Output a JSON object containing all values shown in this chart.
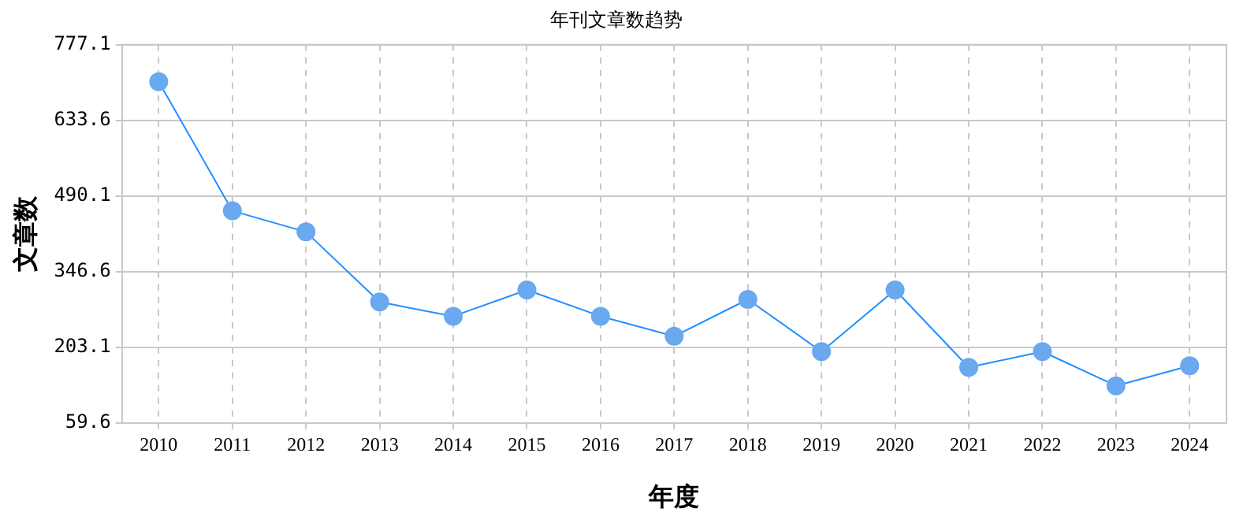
{
  "chart_data": {
    "type": "line",
    "title": "年刊文章数趋势",
    "xlabel": "年度",
    "ylabel": "文章数",
    "categories": [
      "2010",
      "2011",
      "2012",
      "2013",
      "2014",
      "2015",
      "2016",
      "2017",
      "2018",
      "2019",
      "2020",
      "2021",
      "2022",
      "2023",
      "2024"
    ],
    "series": [
      {
        "color": "#1e90ff",
        "values": [
          707,
          462,
          422,
          289,
          262,
          312,
          262,
          224,
          294,
          195,
          312,
          165,
          195,
          130,
          168
        ]
      }
    ],
    "ylim": [
      59.6,
      777.1
    ],
    "yticks": [
      59.6,
      203.1,
      346.6,
      490.1,
      633.6,
      777.1
    ],
    "grid": true,
    "legend": false,
    "marker": "circle",
    "line_style": "solid"
  }
}
